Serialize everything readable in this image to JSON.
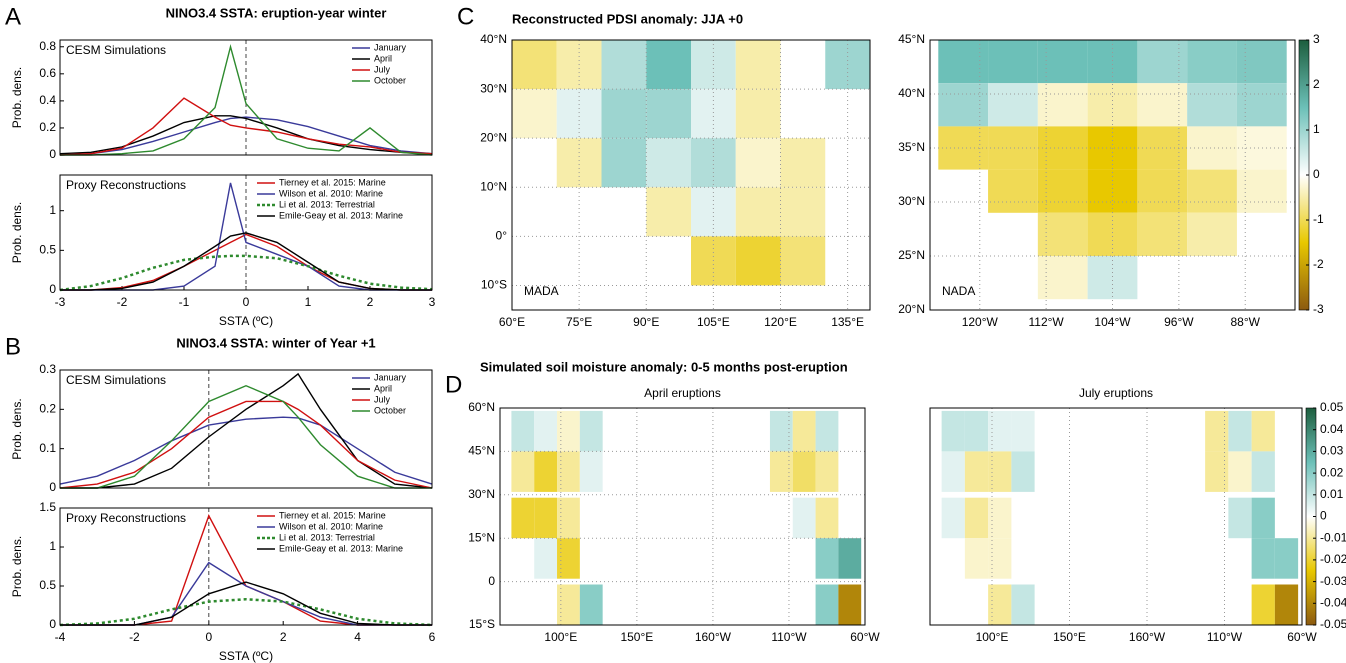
{
  "chart_data": [
    {
      "type": "line",
      "panel": "A",
      "title": "NINO3.4 SSTA: eruption-year winter",
      "annotation": "CESM Simulations",
      "ylabel": "Prob. dens.",
      "x": [
        -3,
        -2.5,
        -2,
        -1.5,
        -1,
        -0.5,
        -0.25,
        0,
        0.5,
        1,
        1.5,
        2,
        2.5,
        3
      ],
      "xlim": [
        -3,
        3
      ],
      "ylim": [
        0,
        0.85
      ],
      "yticks": [
        0,
        0.2,
        0.4,
        0.6,
        0.8
      ],
      "vline": 0,
      "series": [
        {
          "name": "January",
          "color": "#3a3a9a",
          "values": [
            0,
            0.01,
            0.04,
            0.1,
            0.17,
            0.24,
            0.27,
            0.28,
            0.26,
            0.21,
            0.14,
            0.07,
            0.03,
            0.01
          ]
        },
        {
          "name": "April",
          "color": "#000000",
          "values": [
            0.01,
            0.02,
            0.06,
            0.14,
            0.24,
            0.29,
            0.29,
            0.27,
            0.2,
            0.12,
            0.07,
            0.04,
            0.02,
            0.01
          ]
        },
        {
          "name": "July",
          "color": "#d01010",
          "values": [
            0,
            0.01,
            0.05,
            0.2,
            0.42,
            0.28,
            0.22,
            0.2,
            0.17,
            0.12,
            0.08,
            0.06,
            0.02,
            0.01
          ]
        },
        {
          "name": "October",
          "color": "#2e8a2e",
          "values": [
            0,
            0,
            0.01,
            0.03,
            0.12,
            0.35,
            0.8,
            0.38,
            0.12,
            0.05,
            0.03,
            0.2,
            0.02,
            0
          ]
        }
      ]
    },
    {
      "type": "line",
      "annotation": "Proxy Reconstructions",
      "ylabel": "Prob. dens.",
      "xlabel": "SSTA (ºC)",
      "x": [
        -3,
        -2.5,
        -2,
        -1.5,
        -1,
        -0.5,
        -0.25,
        0,
        0.5,
        1,
        1.5,
        2,
        2.5,
        3
      ],
      "xlim": [
        -3,
        3
      ],
      "ylim": [
        0,
        1.45
      ],
      "xticks": [
        -3,
        -2,
        -1,
        0,
        1,
        2,
        3
      ],
      "yticks": [
        0,
        0.5,
        1
      ],
      "vline": 0,
      "series": [
        {
          "name": "Tierney et al. 2015: Marine",
          "color": "#d01010",
          "values": [
            0,
            0,
            0.03,
            0.12,
            0.3,
            0.5,
            0.6,
            0.7,
            0.55,
            0.3,
            0.1,
            0.02,
            0,
            0
          ]
        },
        {
          "name": "Wilson et al. 2010: Marine",
          "color": "#3a3a9a",
          "values": [
            0,
            0,
            0,
            0,
            0.05,
            0.3,
            1.35,
            0.6,
            0.45,
            0.3,
            0.05,
            0,
            0,
            0
          ]
        },
        {
          "name": "Li et al. 2013: Terrestrial",
          "color": "#2e8a2e",
          "linestyle": "dotted",
          "values": [
            0,
            0.05,
            0.15,
            0.28,
            0.38,
            0.42,
            0.43,
            0.43,
            0.4,
            0.3,
            0.18,
            0.08,
            0.03,
            0.01
          ]
        },
        {
          "name": "Emile-Geay et al. 2013: Marine",
          "color": "#000000",
          "values": [
            0,
            0,
            0.02,
            0.1,
            0.3,
            0.55,
            0.68,
            0.72,
            0.6,
            0.35,
            0.1,
            0.02,
            0,
            0
          ]
        }
      ]
    },
    {
      "type": "line",
      "panel": "B",
      "title": "NINO3.4 SSTA: winter of Year +1",
      "annotation": "CESM Simulations",
      "ylabel": "Prob. dens.",
      "x": [
        -4,
        -3,
        -2,
        -1,
        0,
        1,
        2,
        2.4,
        3,
        4,
        5,
        6
      ],
      "xlim": [
        -4,
        6
      ],
      "ylim": [
        0,
        0.3
      ],
      "yticks": [
        0,
        0.1,
        0.2,
        0.3
      ],
      "vline": 0,
      "series": [
        {
          "name": "January",
          "color": "#3a3a9a",
          "values": [
            0.01,
            0.03,
            0.07,
            0.12,
            0.16,
            0.175,
            0.18,
            0.178,
            0.16,
            0.1,
            0.04,
            0.01
          ]
        },
        {
          "name": "April",
          "color": "#000000",
          "values": [
            0,
            0,
            0.01,
            0.05,
            0.13,
            0.2,
            0.26,
            0.29,
            0.2,
            0.07,
            0.01,
            0
          ]
        },
        {
          "name": "July",
          "color": "#d01010",
          "values": [
            0,
            0.01,
            0.04,
            0.1,
            0.18,
            0.22,
            0.22,
            0.2,
            0.16,
            0.07,
            0.02,
            0
          ]
        },
        {
          "name": "October",
          "color": "#2e8a2e",
          "values": [
            0,
            0,
            0.03,
            0.12,
            0.22,
            0.26,
            0.22,
            0.18,
            0.11,
            0.03,
            0,
            0
          ]
        }
      ]
    },
    {
      "type": "line",
      "annotation": "Proxy Reconstructions",
      "ylabel": "Prob. dens.",
      "xlabel": "SSTA (ºC)",
      "x": [
        -4,
        -3,
        -2,
        -1,
        0,
        1,
        2,
        3,
        4,
        5,
        6
      ],
      "xlim": [
        -4,
        6
      ],
      "ylim": [
        0,
        1.5
      ],
      "xticks": [
        -4,
        -2,
        0,
        2,
        4,
        6
      ],
      "yticks": [
        0,
        0.5,
        1,
        1.5
      ],
      "vline": 0,
      "series": [
        {
          "name": "Tierney et al. 2015: Marine",
          "color": "#d01010",
          "values": [
            0,
            0,
            0,
            0.05,
            1.4,
            0.5,
            0.3,
            0.05,
            0,
            0,
            0
          ]
        },
        {
          "name": "Wilson et al. 2010: Marine",
          "color": "#3a3a9a",
          "values": [
            0,
            0,
            0,
            0.1,
            0.8,
            0.5,
            0.3,
            0.1,
            0,
            0,
            0
          ]
        },
        {
          "name": "Li et al. 2013: Terrestrial",
          "color": "#2e8a2e",
          "linestyle": "dotted",
          "values": [
            0,
            0.02,
            0.08,
            0.2,
            0.3,
            0.33,
            0.3,
            0.2,
            0.08,
            0.02,
            0
          ]
        },
        {
          "name": "Emile-Geay et al. 2013: Marine",
          "color": "#000000",
          "values": [
            0,
            0,
            0,
            0.1,
            0.4,
            0.55,
            0.4,
            0.15,
            0.02,
            0,
            0
          ]
        }
      ]
    },
    {
      "type": "map",
      "panel": "C",
      "title": "Reconstructed PDSI anomaly: JJA +0",
      "label": "MADA",
      "x": [
        65,
        75,
        85,
        95,
        105,
        115,
        125,
        135
      ],
      "y": [
        35,
        25,
        15,
        5,
        -5
      ],
      "values": [
        [
          -0.8,
          -0.5,
          0.8,
          1.5,
          0.5,
          -0.5,
          null,
          1
        ],
        [
          -0.3,
          0.3,
          1,
          1,
          0.3,
          -0.5,
          null,
          null
        ],
        [
          null,
          -0.5,
          1,
          0.5,
          0.8,
          -0.3,
          -0.5,
          null
        ],
        [
          null,
          null,
          null,
          -0.5,
          0.3,
          -0.5,
          -0.5,
          null
        ],
        [
          null,
          null,
          null,
          null,
          -1,
          -1.2,
          -0.8,
          null
        ]
      ],
      "xlim": [
        60,
        140
      ],
      "ylim": [
        -15,
        40
      ],
      "xticks": [
        {
          "value": 60,
          "label": "60°E"
        },
        {
          "value": 75,
          "label": "75°E"
        },
        {
          "value": 90,
          "label": "90°E"
        },
        {
          "value": 105,
          "label": "105°E"
        },
        {
          "value": 120,
          "label": "120°E"
        },
        {
          "value": 135,
          "label": "135°E"
        }
      ],
      "yticks": [
        {
          "value": -10,
          "label": "10°S"
        },
        {
          "value": 0,
          "label": "0°"
        },
        {
          "value": 10,
          "label": "10°N"
        },
        {
          "value": 20,
          "label": "20°N"
        },
        {
          "value": 30,
          "label": "30°N"
        },
        {
          "value": 40,
          "label": "40°N"
        }
      ],
      "clim": [
        -3,
        3
      ],
      "colormap": [
        "#8c5a10",
        "#e8c800",
        "#ffffff",
        "#6cc0b8",
        "#1d5e3e"
      ],
      "grid": true
    },
    {
      "type": "map",
      "label": "NADA",
      "x": [
        -122,
        -116,
        -110,
        -104,
        -98,
        -92,
        -86
      ],
      "y": [
        43,
        39,
        35,
        31,
        27,
        23
      ],
      "values": [
        [
          1.5,
          1.5,
          1.5,
          1.5,
          1,
          1.2,
          1.3
        ],
        [
          1,
          0.5,
          -0.3,
          -0.5,
          -0.3,
          0.8,
          1
        ],
        [
          -1,
          -1,
          -1.2,
          -1.5,
          -1,
          -0.3,
          -0.2
        ],
        [
          null,
          -1,
          -1.2,
          -1.5,
          -1,
          -0.8,
          -0.3
        ],
        [
          null,
          null,
          -0.8,
          -1,
          -0.8,
          -0.5,
          null
        ],
        [
          null,
          null,
          -0.3,
          0.5,
          null,
          null,
          null
        ]
      ],
      "xlim": [
        -126,
        -82
      ],
      "ylim": [
        20,
        45
      ],
      "xticks": [
        {
          "value": -120,
          "label": "120°W"
        },
        {
          "value": -112,
          "label": "112°W"
        },
        {
          "value": -104,
          "label": "104°W"
        },
        {
          "value": -96,
          "label": "96°W"
        },
        {
          "value": -88,
          "label": "88°W"
        }
      ],
      "yticks": [
        {
          "value": 20,
          "label": "20°N"
        },
        {
          "value": 25,
          "label": "25°N"
        },
        {
          "value": 30,
          "label": "30°N"
        },
        {
          "value": 35,
          "label": "35°N"
        },
        {
          "value": 40,
          "label": "40°N"
        },
        {
          "value": 45,
          "label": "45°N"
        }
      ],
      "clim": [
        -3,
        3
      ],
      "cticks": [
        -3,
        -2,
        -1,
        0,
        1,
        2,
        3
      ],
      "colormap": [
        "#8c5a10",
        "#e8c800",
        "#ffffff",
        "#6cc0b8",
        "#1d5e3e"
      ],
      "grid": true
    },
    {
      "type": "map",
      "panel": "D",
      "title": "Simulated soil moisture anomaly: 0-5 months post-eruption",
      "subtitle": "April eruptions",
      "x": [
        75,
        90,
        105,
        120,
        135,
        245,
        260,
        275,
        290
      ],
      "y": [
        52,
        38,
        22,
        8,
        -8
      ],
      "values": [
        [
          0.01,
          0.005,
          -0.005,
          0.01,
          null,
          0.01,
          -0.01,
          0.01,
          null
        ],
        [
          -0.01,
          -0.02,
          -0.01,
          0.005,
          null,
          -0.01,
          -0.015,
          -0.01,
          null
        ],
        [
          -0.02,
          -0.02,
          -0.01,
          null,
          null,
          null,
          0.005,
          -0.01,
          null
        ],
        [
          null,
          0.005,
          -0.02,
          null,
          null,
          null,
          null,
          0.02,
          0.03
        ],
        [
          null,
          null,
          -0.01,
          0.02,
          null,
          null,
          null,
          0.02,
          -0.04
        ]
      ],
      "xlim": [
        60,
        300
      ],
      "ylim": [
        -15,
        60
      ],
      "xticks": [
        {
          "value": 100,
          "label": "100°E"
        },
        {
          "value": 150,
          "label": "150°E"
        },
        {
          "value": 200,
          "label": "160°W"
        },
        {
          "value": 250,
          "label": "110°W"
        },
        {
          "value": 300,
          "label": "60°W"
        }
      ],
      "yticks": [
        {
          "value": -15,
          "label": "15°S"
        },
        0,
        {
          "value": 15,
          "label": "15°N"
        },
        {
          "value": 30,
          "label": "30°N"
        },
        {
          "value": 45,
          "label": "45°N"
        },
        {
          "value": 60,
          "label": "60°N"
        }
      ],
      "clim": [
        -0.05,
        0.05
      ],
      "colormap": [
        "#8c5a10",
        "#e8c800",
        "#ffffff",
        "#6cc0b8",
        "#1d5e3e"
      ],
      "grid": true
    },
    {
      "type": "map",
      "subtitle": "July eruptions",
      "x": [
        75,
        90,
        105,
        120,
        135,
        245,
        260,
        275,
        290
      ],
      "y": [
        52,
        38,
        22,
        8,
        -8
      ],
      "values": [
        [
          0.01,
          0.01,
          0.005,
          0.005,
          null,
          -0.01,
          0.01,
          -0.01,
          null
        ],
        [
          0.005,
          -0.01,
          -0.01,
          0.01,
          null,
          -0.01,
          -0.005,
          0.01,
          null
        ],
        [
          0.005,
          -0.01,
          -0.005,
          null,
          null,
          null,
          0.01,
          0.02,
          null
        ],
        [
          null,
          -0.005,
          -0.005,
          null,
          null,
          null,
          null,
          0.02,
          0.02
        ],
        [
          null,
          null,
          -0.01,
          0.01,
          null,
          null,
          null,
          -0.02,
          -0.04
        ]
      ],
      "xlim": [
        60,
        300
      ],
      "ylim": [
        -15,
        60
      ],
      "xticks": [
        {
          "value": 100,
          "label": "100°E"
        },
        {
          "value": 150,
          "label": "150°E"
        },
        {
          "value": 200,
          "label": "160°W"
        },
        {
          "value": 250,
          "label": "110°W"
        },
        {
          "value": 300,
          "label": "60°W"
        }
      ],
      "clim": [
        -0.05,
        0.05
      ],
      "cticks": [
        -0.05,
        -0.04,
        -0.03,
        -0.02,
        -0.01,
        0,
        0.01,
        0.02,
        0.03,
        0.04,
        0.05
      ],
      "colormap": [
        "#8c5a10",
        "#e8c800",
        "#ffffff",
        "#6cc0b8",
        "#1d5e3e"
      ],
      "grid": true
    }
  ]
}
